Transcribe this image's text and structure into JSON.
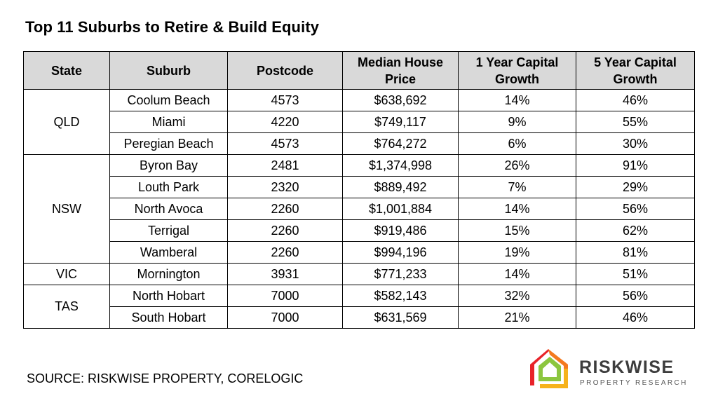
{
  "title": "Top 11 Suburbs to Retire & Build Equity",
  "table": {
    "headers": {
      "state": "State",
      "suburb": "Suburb",
      "postcode": "Postcode",
      "price_l1": "Median House",
      "price_l2": "Price",
      "g1_l1": "1 Year Capital",
      "g1_l2": "Growth",
      "g5_l1": "5 Year Capital",
      "g5_l2": "Growth"
    },
    "groups": [
      {
        "state": "QLD",
        "rows": [
          {
            "suburb": "Coolum Beach",
            "postcode": "4573",
            "price": "$638,692",
            "g1": "14%",
            "g5": "46%"
          },
          {
            "suburb": "Miami",
            "postcode": "4220",
            "price": "$749,117",
            "g1": "9%",
            "g5": "55%"
          },
          {
            "suburb": "Peregian Beach",
            "postcode": "4573",
            "price": "$764,272",
            "g1": "6%",
            "g5": "30%"
          }
        ]
      },
      {
        "state": "NSW",
        "rows": [
          {
            "suburb": "Byron Bay",
            "postcode": "2481",
            "price": "$1,374,998",
            "g1": "26%",
            "g5": "91%"
          },
          {
            "suburb": "Louth Park",
            "postcode": "2320",
            "price": "$889,492",
            "g1": "7%",
            "g5": "29%"
          },
          {
            "suburb": "North Avoca",
            "postcode": "2260",
            "price": "$1,001,884",
            "g1": "14%",
            "g5": "56%"
          },
          {
            "suburb": "Terrigal",
            "postcode": "2260",
            "price": "$919,486",
            "g1": "15%",
            "g5": "62%"
          },
          {
            "suburb": "Wamberal",
            "postcode": "2260",
            "price": "$994,196",
            "g1": "19%",
            "g5": "81%"
          }
        ]
      },
      {
        "state": "VIC",
        "rows": [
          {
            "suburb": "Mornington",
            "postcode": "3931",
            "price": "$771,233",
            "g1": "14%",
            "g5": "51%"
          }
        ]
      },
      {
        "state": "TAS",
        "rows": [
          {
            "suburb": "North Hobart",
            "postcode": "7000",
            "price": "$582,143",
            "g1": "32%",
            "g5": "56%"
          },
          {
            "suburb": "South Hobart",
            "postcode": "7000",
            "price": "$631,569",
            "g1": "21%",
            "g5": "46%"
          }
        ]
      }
    ]
  },
  "source": "SOURCE: RISKWISE PROPERTY, CORELOGIC",
  "logo": {
    "name": "RISKWISE",
    "tagline": "PROPERTY RESEARCH",
    "icon": "house-icon",
    "colors": [
      "#e8232a",
      "#f47a20",
      "#f6b21b",
      "#8cc63f"
    ]
  }
}
